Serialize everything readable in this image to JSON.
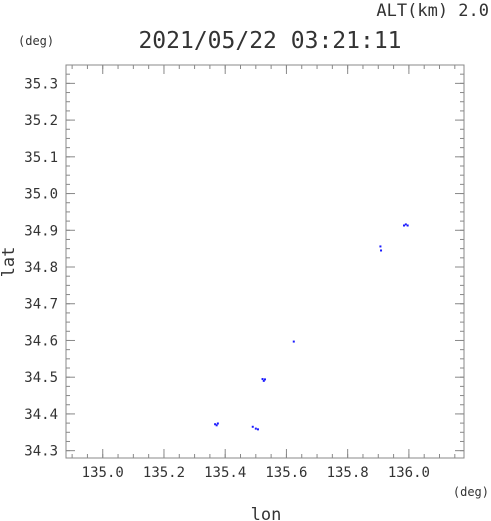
{
  "header": {
    "alt_label": "ALT(km) 2.0",
    "datetime": "2021/05/22 03:21:11",
    "y_unit": "(deg)",
    "x_unit": "(deg)"
  },
  "chart_data": {
    "type": "scatter",
    "xlabel": "lon",
    "ylabel": "lat",
    "xlim": [
      134.88,
      136.18
    ],
    "ylim": [
      34.28,
      35.35
    ],
    "x_ticks": [
      "135.0",
      "135.2",
      "135.4",
      "135.6",
      "135.8",
      "136.0"
    ],
    "y_ticks": [
      "34.3",
      "34.4",
      "34.5",
      "34.6",
      "34.7",
      "34.8",
      "34.9",
      "35.0",
      "35.1",
      "35.2",
      "35.3"
    ],
    "grid": false,
    "point_color": "#1a1aff",
    "points": [
      {
        "x": 135.367,
        "y": 34.372
      },
      {
        "x": 135.372,
        "y": 34.369
      },
      {
        "x": 135.376,
        "y": 34.374
      },
      {
        "x": 135.49,
        "y": 34.365
      },
      {
        "x": 135.5,
        "y": 34.36
      },
      {
        "x": 135.507,
        "y": 34.358
      },
      {
        "x": 135.522,
        "y": 34.495
      },
      {
        "x": 135.526,
        "y": 34.49
      },
      {
        "x": 135.53,
        "y": 34.494
      },
      {
        "x": 135.624,
        "y": 34.597
      },
      {
        "x": 135.907,
        "y": 34.856
      },
      {
        "x": 135.909,
        "y": 34.845
      },
      {
        "x": 135.984,
        "y": 34.913
      },
      {
        "x": 135.99,
        "y": 34.916
      },
      {
        "x": 135.996,
        "y": 34.913
      }
    ]
  }
}
